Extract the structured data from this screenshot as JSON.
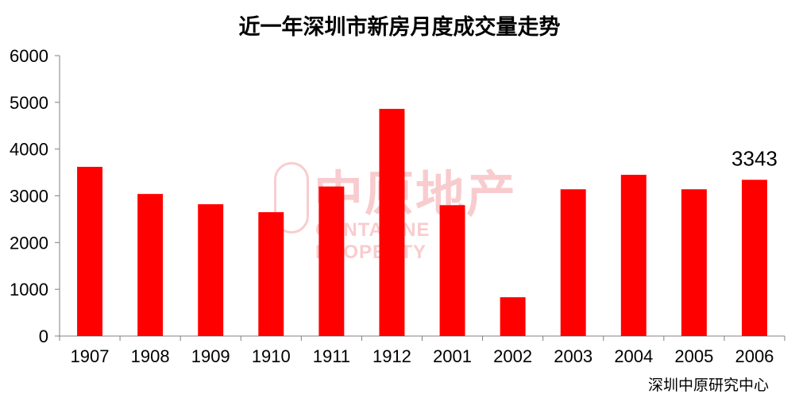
{
  "chart_data": {
    "type": "bar",
    "title": "近一年深圳市新房月度成交量走势",
    "categories": [
      "1907",
      "1908",
      "1909",
      "1910",
      "1911",
      "1912",
      "2001",
      "2002",
      "2003",
      "2004",
      "2005",
      "2006"
    ],
    "values": [
      3620,
      3040,
      2820,
      2650,
      3200,
      4860,
      2800,
      830,
      3140,
      3450,
      3140,
      3343
    ],
    "ylim": [
      0,
      6000
    ],
    "yticks": [
      0,
      1000,
      2000,
      3000,
      4000,
      5000,
      6000
    ],
    "data_labels": [
      {
        "index": 11,
        "text": "3343"
      }
    ],
    "bar_color": "#ff0000",
    "grid": false
  },
  "source": "深圳中原研究中心",
  "watermark": {
    "main": "中原地产",
    "sub": "CENTALINE PROPERTY"
  }
}
